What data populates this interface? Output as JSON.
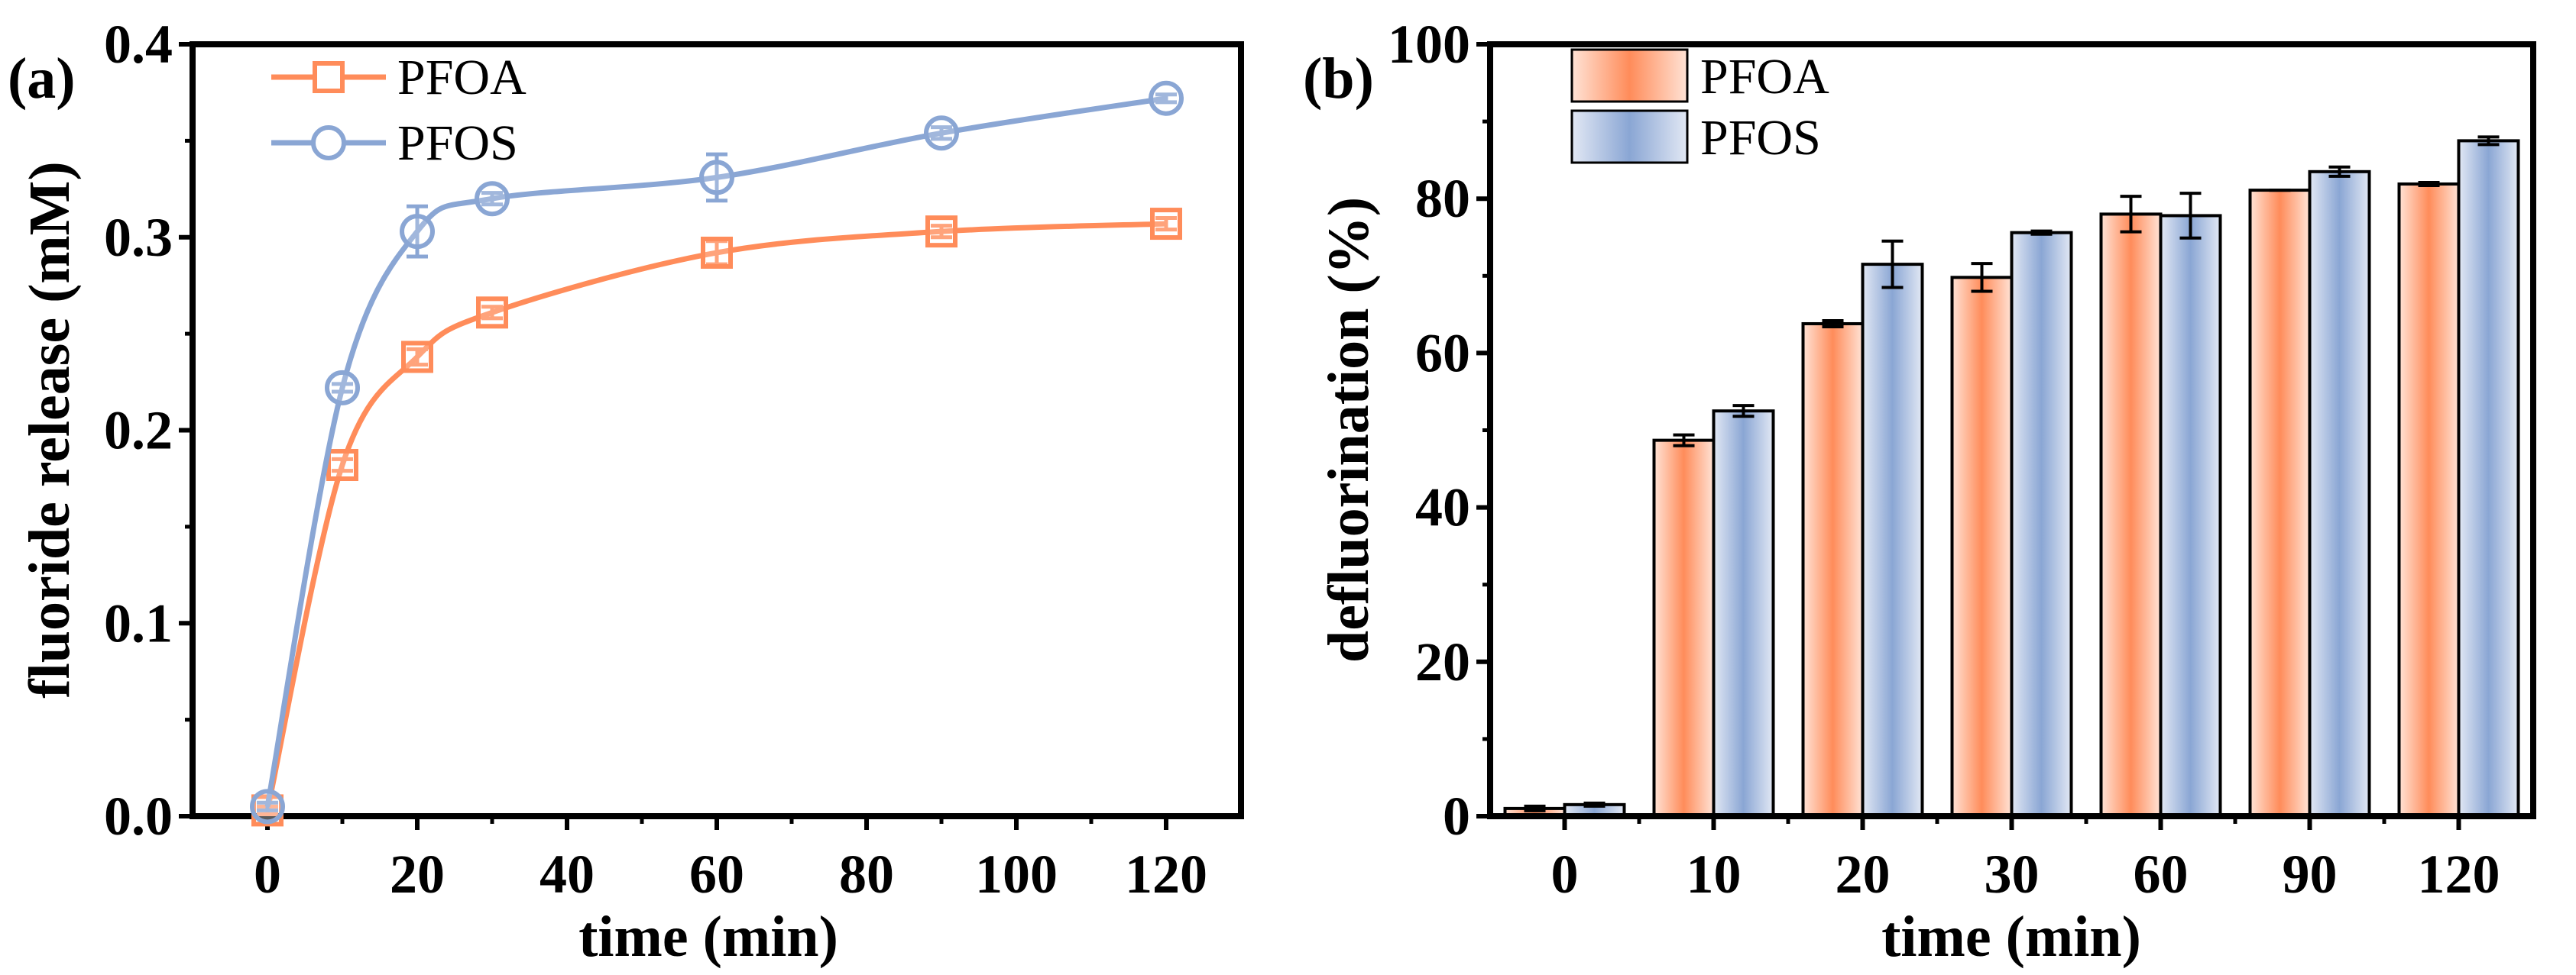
{
  "chart_data": [
    {
      "type": "line",
      "panel_label": "(a)",
      "xlabel": "time (min)",
      "ylabel": "fluoride release (mM)",
      "xlim": [
        -10,
        130
      ],
      "ylim": [
        0,
        0.4
      ],
      "xticks": [
        "0",
        "20",
        "40",
        "60",
        "80",
        "100",
        "120"
      ],
      "yticks": [
        "0.0",
        "0.1",
        "0.2",
        "0.3",
        "0.4"
      ],
      "legend_position": "top-left",
      "x": [
        0,
        10,
        20,
        30,
        60,
        90,
        120
      ],
      "series": [
        {
          "name": "PFOA",
          "marker": "square",
          "color": "#ff8c5a",
          "values": [
            0.003,
            0.182,
            0.238,
            0.261,
            0.292,
            0.303,
            0.307
          ],
          "errors": [
            0.002,
            0.003,
            0.004,
            0.003,
            0.006,
            0.003,
            0.003
          ]
        },
        {
          "name": "PFOS",
          "marker": "circle",
          "color": "#8aa6d4",
          "values": [
            0.005,
            0.222,
            0.303,
            0.32,
            0.331,
            0.354,
            0.372
          ],
          "errors": [
            0.002,
            0.002,
            0.013,
            0.003,
            0.012,
            0.003,
            0.002
          ]
        }
      ]
    },
    {
      "type": "bar",
      "panel_label": "(b)",
      "xlabel": "time (min)",
      "ylabel": "defluorination (%)",
      "ylim": [
        0,
        100
      ],
      "yticks": [
        "0",
        "20",
        "40",
        "60",
        "80",
        "100"
      ],
      "categories": [
        "0",
        "10",
        "20",
        "30",
        "60",
        "90",
        "120"
      ],
      "legend_position": "top-left",
      "series": [
        {
          "name": "PFOA",
          "color": "#ff8c5a",
          "light": "#ffe3d6",
          "values": [
            1.0,
            48.7,
            63.8,
            69.8,
            78.0,
            81.1,
            81.9
          ],
          "errors": [
            0.3,
            0.7,
            0.4,
            1.8,
            2.3,
            0.0,
            0.2
          ]
        },
        {
          "name": "PFOS",
          "color": "#8aa6d4",
          "light": "#e2e8f4",
          "values": [
            1.5,
            52.5,
            71.5,
            75.6,
            77.8,
            83.5,
            87.5
          ],
          "errors": [
            0.2,
            0.7,
            3.0,
            0.2,
            2.9,
            0.6,
            0.5
          ]
        }
      ]
    }
  ]
}
